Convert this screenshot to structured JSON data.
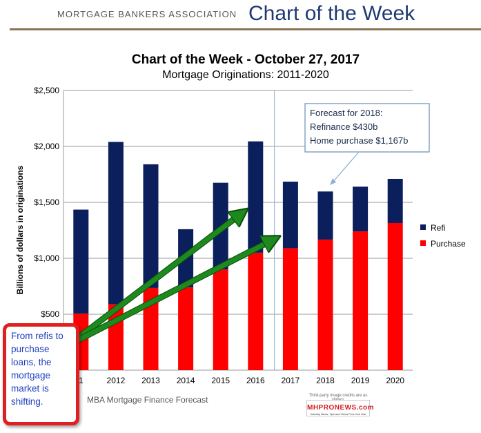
{
  "header": {
    "org": "MORTGAGE BANKERS ASSOCIATION",
    "title": "Chart of the Week"
  },
  "chart_data": {
    "type": "bar",
    "stacked": true,
    "title": "Chart of the Week - October 27, 2017",
    "subtitle": "Mortgage Originations: 2011-2020",
    "ylabel": "Billions of dollars in originations",
    "xlabel": "",
    "ylim": [
      0,
      2500
    ],
    "yticks": [
      {
        "value": 0,
        "label": ""
      },
      {
        "value": 500,
        "label": "$500"
      },
      {
        "value": 1000,
        "label": "$1,000"
      },
      {
        "value": 1500,
        "label": "$1,500"
      },
      {
        "value": 2000,
        "label": "$2,000"
      },
      {
        "value": 2500,
        "label": "$2,500"
      }
    ],
    "categories": [
      "1",
      "2012",
      "2013",
      "2014",
      "2015",
      "2016",
      "2017",
      "2018",
      "2019",
      "2020"
    ],
    "series": [
      {
        "name": "Purchase",
        "color": "#ff0000",
        "values": [
          505,
          590,
          735,
          740,
          900,
          1050,
          1090,
          1167,
          1240,
          1315
        ]
      },
      {
        "name": "Refi",
        "color": "#0b1f5c",
        "values": [
          930,
          1450,
          1105,
          520,
          775,
          995,
          595,
          430,
          400,
          395
        ]
      }
    ],
    "legend": {
      "position": "right",
      "items": [
        {
          "name": "Refi",
          "color": "#0b1f5c"
        },
        {
          "name": "Purchase",
          "color": "#ff0000"
        }
      ]
    },
    "forecast_divider_after": "2016",
    "grid": true,
    "annotation": {
      "lines": [
        "Forecast for 2018:",
        "Refinance $430b",
        "Home purchase $1,167b"
      ],
      "points_to": "2018"
    },
    "source": "MBA Mortgage Finance Forecast"
  },
  "callout": {
    "text": "From refis to purchase loans, the mortgage market is shifting."
  },
  "badge": {
    "note": "Third-party image credits are as shown.",
    "logo": "MHPRONEWS.com",
    "tagline": "Industry News, Tips and Views Pros Can Use"
  },
  "colors": {
    "arrow": "#1c8a1c",
    "arrow_outline": "#0e4d0e",
    "annotation_border": "#6b8db5"
  }
}
